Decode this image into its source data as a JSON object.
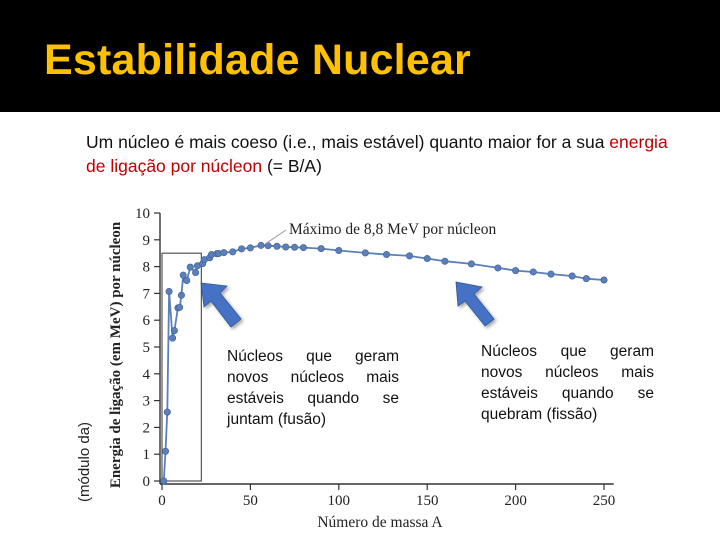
{
  "header": {
    "title": "Estabilidade Nuclear"
  },
  "subtitle": {
    "prefix": "Um núcleo é mais coeso (i.e., mais estável) quanto maior for a sua ",
    "highlight": "energia de ligação por núcleon",
    "suffix": " (= B/A)"
  },
  "side_label": "(módulo da)",
  "notes": {
    "fusion": "Núcleos que geram novos núcleos mais estáveis quando se juntam (fusão)",
    "fission": "Núcleos que geram novos núcleos mais estáveis quando se quebram (fissão)"
  },
  "colors": {
    "title": "#ffc000",
    "highlight": "#c00000",
    "data_points": "#5b7fb8",
    "arrows": "#4472c4"
  },
  "chart_data": {
    "type": "line",
    "xlabel": "Número de massa A",
    "ylabel": "Energia de ligação (em MeV) por núcleon",
    "xlim": [
      0,
      260
    ],
    "ylim": [
      0,
      10
    ],
    "x_ticks": [
      0,
      50,
      100,
      150,
      200,
      250
    ],
    "y_ticks": [
      0,
      1,
      2,
      3,
      4,
      5,
      6,
      7,
      8,
      9,
      10
    ],
    "annotation": {
      "text": "Máximo de  8,8 MeV por núcleon",
      "x": 56,
      "y": 8.79
    },
    "highlight_box": {
      "x": [
        0,
        20
      ],
      "y": [
        0,
        8.5
      ]
    },
    "series": [
      {
        "x": [
          1,
          2,
          3,
          4,
          6,
          7,
          9,
          10,
          11,
          12,
          14,
          16,
          19,
          20,
          23,
          24,
          27,
          28,
          31,
          32,
          35,
          40,
          45,
          50,
          56,
          60,
          65,
          70,
          75,
          80,
          90,
          100,
          115,
          127,
          140,
          150,
          160,
          175,
          190,
          200,
          210,
          220,
          232,
          240,
          250
        ],
        "y": [
          0,
          1.11,
          2.57,
          7.07,
          5.33,
          5.61,
          6.46,
          6.48,
          6.93,
          7.68,
          7.48,
          7.98,
          7.78,
          8.03,
          8.11,
          8.26,
          8.33,
          8.45,
          8.48,
          8.49,
          8.52,
          8.55,
          8.66,
          8.7,
          8.79,
          8.78,
          8.76,
          8.73,
          8.72,
          8.71,
          8.67,
          8.6,
          8.51,
          8.45,
          8.4,
          8.3,
          8.2,
          8.1,
          7.95,
          7.85,
          7.8,
          7.72,
          7.65,
          7.55,
          7.5
        ]
      }
    ]
  }
}
